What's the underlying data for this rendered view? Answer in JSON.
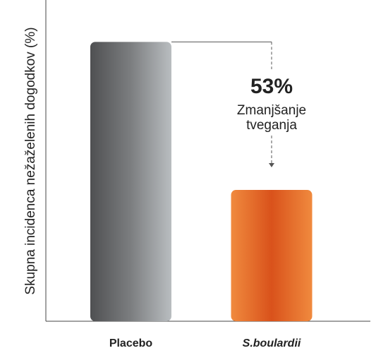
{
  "chart_data": {
    "type": "bar",
    "y_label": "Skupna incidenca nežaželenih dogodkov  (%)",
    "categories": [
      "Placebo",
      "S.boulardii"
    ],
    "values": [
      100,
      47
    ],
    "colors": [
      [
        "#4f5052",
        "#7c7e80",
        "#b9bdc0"
      ],
      [
        "#f08a3e",
        "#d9521b",
        "#f08a3e"
      ]
    ],
    "ylim": [
      0,
      115
    ],
    "annotation": {
      "value": 53,
      "label": "53%",
      "text": [
        "Zmanjšanje",
        "tveganja"
      ]
    }
  }
}
